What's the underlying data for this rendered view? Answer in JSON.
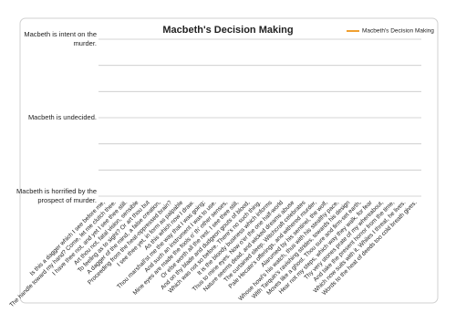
{
  "chart_data": {
    "type": "line",
    "title": "Macbeth's Decision Making",
    "categories": [
      "Is this a dagger which I see before me,",
      "The handle toward my hand? Come, let me clutch thee.",
      "I have thee not, and yet I see thee still.",
      "Art thou not, fatal vision, sensible",
      "To feeling as to sight? Or art thou but",
      "A dagger of the mind, a false creation,",
      "Proceeding from the heat-oppressed brain?",
      "I see thee yet, in form as palpable",
      "As this which now I draw.",
      "Thou marshall'st me the way that I was going;",
      "And such an instrument I was to use.",
      "Mine eyes are made the fools o' th' other senses,",
      "Or else worth all the rest. I see thee still,",
      "And on thy blade and dudgeon gouts of blood,",
      "Which was not so before. There's no such thing.",
      "It is the bloody business which informs",
      "Thus to mine eyes. Now o'er the one half-world",
      "Nature seems dead, and wicked dreams abuse",
      "The curtained sleep. Witchcraft celebrates",
      "Pale Hecate's offerings, and withered murder,",
      "Alarumed by his sentinel, the wolf,",
      "Whose howl's his watch, thus with his stealthy pace,",
      "With Tarquin's ravishing strides, towards his design",
      "Moves like a ghost. Thou sure and firm-set earth,",
      "Hear not my steps, which way they walk, for fear",
      "Thy very stones prate of my whereabout,",
      "And take the present horror from the time,",
      "Which now suits with it. Whiles I threat, he lives.",
      "Words to the heat of deeds too cold breath gives."
    ],
    "series": [
      {
        "name": "Macbeth's Decision Making",
        "color": "#f0a030",
        "values": [
          null,
          null,
          null,
          null,
          null,
          null,
          null,
          null,
          null,
          null,
          null,
          null,
          null,
          null,
          null,
          null,
          null,
          null,
          null,
          null,
          null,
          null,
          null,
          null,
          null,
          null,
          null,
          null,
          null
        ]
      }
    ],
    "ylim": [
      0,
      6
    ],
    "yticks": [
      {
        "value": 6,
        "label": "Macbeth is intent on the murder."
      },
      {
        "value": 3,
        "label": "Macbeth is undecided."
      },
      {
        "value": 0,
        "label": "Macbeth is horrified by the prospect of murder."
      }
    ],
    "grid_lines": [
      0,
      1,
      2,
      3,
      4,
      5,
      6
    ],
    "grid": true,
    "legend": "top-right"
  }
}
